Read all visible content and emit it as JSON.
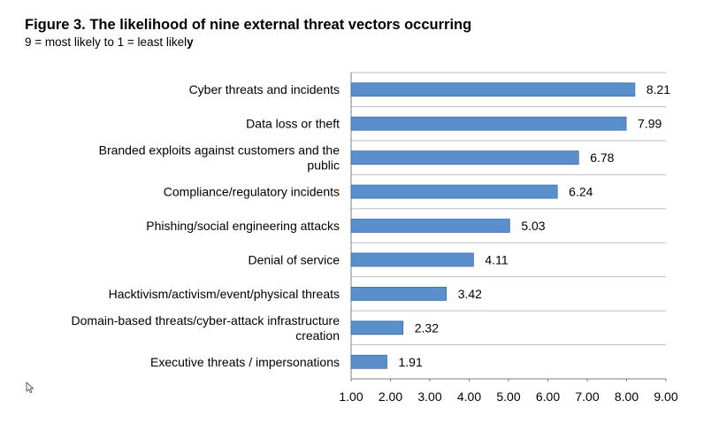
{
  "chart_data": {
    "type": "bar",
    "orientation": "horizontal",
    "title": "Figure 3. The likelihood of nine external threat vectors occurring",
    "subtitle_main": "9 = most likely to 1 = least likel",
    "subtitle_bold": "y",
    "categories": [
      [
        "Cyber threats and incidents"
      ],
      [
        "Data loss or theft"
      ],
      [
        "Branded exploits against customers and the",
        "public"
      ],
      [
        "Compliance/regulatory incidents"
      ],
      [
        "Phishing/social engineering attacks"
      ],
      [
        "Denial of service"
      ],
      [
        "Hacktivism/activism/event/physical threats"
      ],
      [
        "Domain-based threats/cyber-attack infrastructure",
        "creation"
      ],
      [
        "Executive threats / impersonations"
      ]
    ],
    "values": [
      8.21,
      7.99,
      6.78,
      6.24,
      5.03,
      4.11,
      3.42,
      2.32,
      1.91
    ],
    "value_labels": [
      "8.21",
      "7.99",
      "6.78",
      "6.24",
      "5.03",
      "4.11",
      "3.42",
      "2.32",
      "1.91"
    ],
    "xlim": [
      1.0,
      9.0
    ],
    "ticks": [
      "1.00",
      "2.00",
      "3.00",
      "4.00",
      "5.00",
      "6.00",
      "7.00",
      "8.00",
      "9.00"
    ],
    "grid": "horizontal",
    "colors": {
      "bar": "#5b8fcb",
      "bar_edge": "#3d6fa8",
      "grid": "#bdbdbd",
      "axis": "#7f7f7f"
    }
  },
  "icons": {
    "cursor": "mouse-pointer-icon"
  }
}
